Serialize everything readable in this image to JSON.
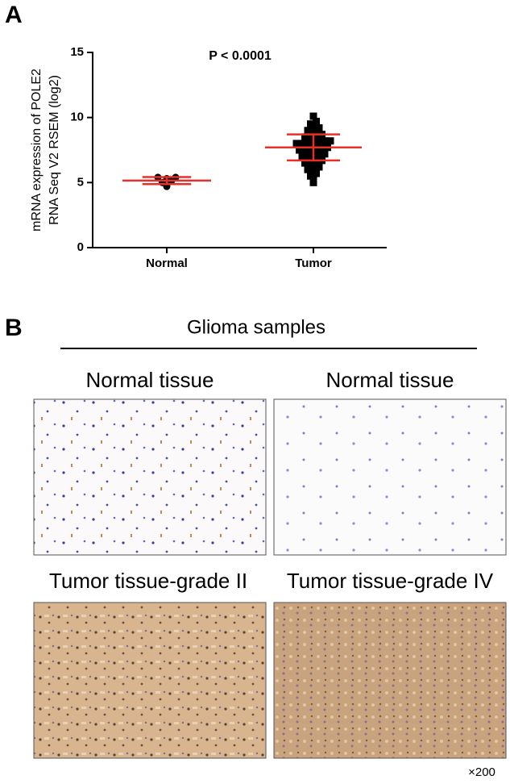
{
  "chart_data": {
    "type": "dot",
    "panel_label": "A",
    "annotation": "P < 0.0001",
    "y_label": [
      "mRNA expression of POLE2",
      "RNA Seq V2 RSEM (log2)"
    ],
    "categories": [
      "Normal",
      "Tumor"
    ],
    "groups": [
      {
        "values": [
          5.4,
          5.3,
          5.4,
          5.0,
          5.1,
          4.7
        ],
        "mean": 5.15,
        "sd": 0.27,
        "marker": "circle"
      },
      {
        "values": [
          5.0,
          5.3,
          5.5,
          5.7,
          5.8,
          6.0,
          6.1,
          6.2,
          6.3,
          6.4,
          6.5,
          6.5,
          6.6,
          6.7,
          6.8,
          6.8,
          6.9,
          7.0,
          7.0,
          7.1,
          7.2,
          7.2,
          7.3,
          7.3,
          7.4,
          7.4,
          7.5,
          7.5,
          7.6,
          7.6,
          7.7,
          7.7,
          7.8,
          7.8,
          7.8,
          7.9,
          7.9,
          8.0,
          8.0,
          8.0,
          8.1,
          8.1,
          8.2,
          8.2,
          8.3,
          8.3,
          8.4,
          8.5,
          8.5,
          8.6,
          8.7,
          8.8,
          8.9,
          9.0,
          9.1,
          9.2,
          9.3,
          9.5,
          9.7,
          10.1
        ],
        "mean": 7.7,
        "sd": 1.0,
        "marker": "square"
      }
    ],
    "point_color": "#000000",
    "summary_color": "#e8302a",
    "ylim": [
      0,
      15
    ],
    "yticks": [
      0,
      5,
      10,
      15
    ]
  },
  "panel_b": {
    "label": "B",
    "title": "Glioma samples",
    "images": [
      {
        "label": "Normal tissue"
      },
      {
        "label": "Normal tissue"
      },
      {
        "label": "Tumor tissue-grade II"
      },
      {
        "label": "Tumor tissue-grade IV"
      }
    ],
    "magnification": "×200"
  }
}
